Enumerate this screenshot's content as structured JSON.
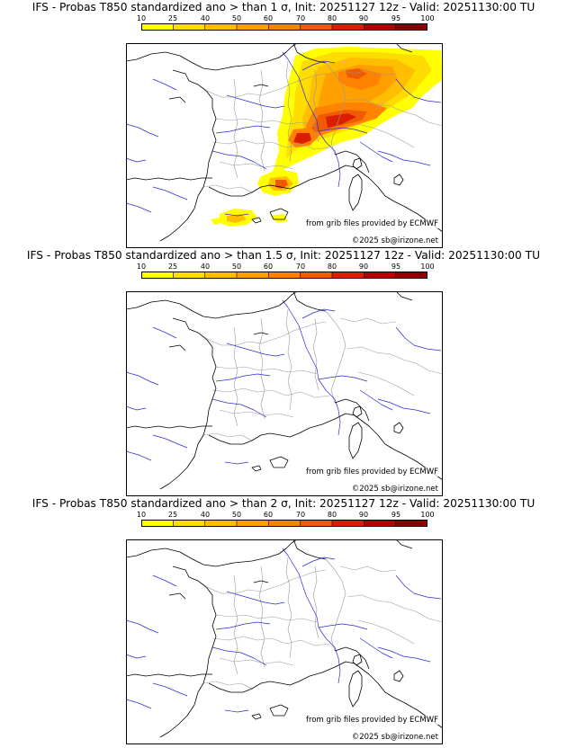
{
  "panels": [
    {
      "title": "IFS - Probas T850  standardized ano > than 1 σ, Init: 20251127 12z - Valid: 20251130:00 TU",
      "threshold": "1 σ",
      "max_probability": 90
    },
    {
      "title": "IFS - Probas T850  standardized ano > than 1.5 σ, Init: 20251127 12z - Valid: 20251130:00 TU",
      "threshold": "1.5 σ",
      "max_probability": 0
    },
    {
      "title": "IFS - Probas T850  standardized ano > than 2 σ, Init: 20251127 12z - Valid: 20251130:00 TU",
      "threshold": "2 σ",
      "max_probability": 0
    }
  ],
  "colorbar": {
    "ticks": [
      "10",
      "25",
      "40",
      "50",
      "60",
      "70",
      "80",
      "90",
      "95",
      "100"
    ],
    "colors": [
      "#ffff00",
      "#ffdc00",
      "#ffbe00",
      "#ffa000",
      "#ff8200",
      "#f05a00",
      "#dc1e00",
      "#b40000",
      "#8c0000"
    ]
  },
  "credits": {
    "source": "from grib files provided by ECMWF",
    "copyright": "©2025 sb@irizone.net"
  },
  "map_colors": {
    "coast": "#000000",
    "rivers": "#2b2bd6",
    "borders": "#9a9a9a",
    "frame": "#000000"
  }
}
